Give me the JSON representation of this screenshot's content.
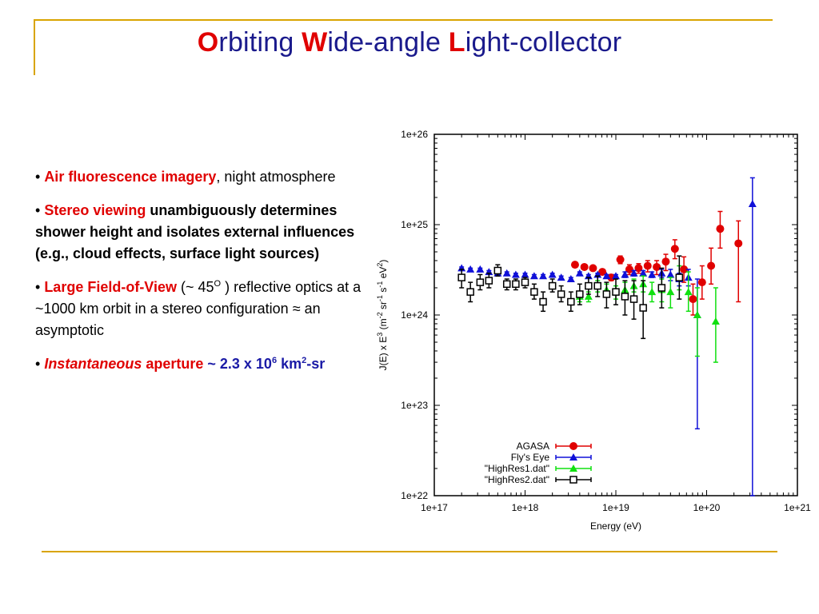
{
  "title": {
    "w1_cap": "O",
    "w1_rest": "rbiting ",
    "w2_cap": "W",
    "w2_rest": "ide-angle ",
    "w3_cap": "L",
    "w3_rest": "ight-collector"
  },
  "bullets": {
    "b1": {
      "marker": "• ",
      "emph": "Air fluorescence imagery",
      "rest": ", night atmosphere"
    },
    "b2": {
      "marker": "• ",
      "emph": "Stereo viewing",
      "rest": " unambiguously determines shower height and isolates external influences (e.g., cloud effects, surface light sources)"
    },
    "b3": {
      "marker": "• ",
      "emph": "Large Field-of-View",
      "rest1": " (~ 45",
      "sup": "O",
      "rest2": " ) reflective optics at a ~1000 km orbit in a stereo configuration ≈  an asymptotic"
    },
    "b4": {
      "marker": "• ",
      "emph": "Instantaneous",
      "rest": "  aperture",
      "val1": " ~ 2.3 x 10",
      "sup": "6",
      "val2": " km",
      "sup2": "2",
      "val3": "-sr"
    }
  },
  "chart_data": {
    "type": "scatter",
    "xlabel": "Energy (eV)",
    "ylabel": "J(E) x E^3 (m^-2 sr^-1 s^-1 eV^2)",
    "xscale": "log",
    "yscale": "log",
    "xlim": [
      1e+17,
      1e+21
    ],
    "ylim": [
      1e+22,
      1e+26
    ],
    "xticks": [
      "1e+17",
      "1e+18",
      "1e+19",
      "1e+20",
      "1e+21"
    ],
    "yticks": [
      "1e+22",
      "1e+23",
      "1e+24",
      "1e+25",
      "1e+26"
    ],
    "legend_position": "bottom-right",
    "series": [
      {
        "name": "AGASA",
        "color": "#e00000",
        "marker": "circle",
        "points": [
          [
            3.55e+18,
            3.6e+24,
            3.4e+24,
            3.8e+24
          ],
          [
            4.5e+18,
            3.4e+24,
            3.2e+24,
            3.6e+24
          ],
          [
            5.6e+18,
            3.3e+24,
            3.1e+24,
            3.5e+24
          ],
          [
            7.1e+18,
            3e+24,
            2.8e+24,
            3.2e+24
          ],
          [
            8.9e+18,
            2.6e+24,
            2.4e+24,
            2.8e+24
          ],
          [
            1.12e+19,
            4.1e+24,
            3.7e+24,
            4.5e+24
          ],
          [
            1.41e+19,
            3.2e+24,
            2.8e+24,
            3.6e+24
          ],
          [
            1.78e+19,
            3.3e+24,
            2.9e+24,
            3.7e+24
          ],
          [
            2.24e+19,
            3.5e+24,
            3e+24,
            4e+24
          ],
          [
            2.82e+19,
            3.4e+24,
            2.8e+24,
            4e+24
          ],
          [
            3.55e+19,
            3.9e+24,
            3.1e+24,
            4.7e+24
          ],
          [
            4.47e+19,
            5.4e+24,
            4.2e+24,
            6.8e+24
          ],
          [
            5.62e+19,
            3.2e+24,
            2.3e+24,
            4.4e+24
          ],
          [
            7.08e+19,
            1.5e+24,
            1e+24,
            2.2e+24
          ],
          [
            8.91e+19,
            2.3e+24,
            1.5e+24,
            3.5e+24
          ],
          [
            1.12e+20,
            3.5e+24,
            2.2e+24,
            5.5e+24
          ],
          [
            1.41e+20,
            9e+24,
            5.5e+24,
            1.4e+25
          ],
          [
            2.24e+20,
            6.2e+24,
            1.4e+24,
            1.1e+25
          ]
        ]
      },
      {
        "name": "Fly's Eye",
        "color": "#1010d8",
        "marker": "triangle",
        "points": [
          [
            2e+17,
            3.3e+24,
            3.2e+24,
            3.4e+24
          ],
          [
            2.5e+17,
            3.2e+24,
            3.1e+24,
            3.3e+24
          ],
          [
            3.2e+17,
            3.2e+24,
            3.1e+24,
            3.3e+24
          ],
          [
            4e+17,
            3e+24,
            2.9e+24,
            3.1e+24
          ],
          [
            5e+17,
            2.9e+24,
            2.8e+24,
            3e+24
          ],
          [
            6.3e+17,
            2.9e+24,
            2.8e+24,
            3e+24
          ],
          [
            7.9e+17,
            2.8e+24,
            2.7e+24,
            2.9e+24
          ],
          [
            1e+18,
            2.8e+24,
            2.7e+24,
            2.9e+24
          ],
          [
            1.26e+18,
            2.7e+24,
            2.6e+24,
            2.8e+24
          ],
          [
            1.58e+18,
            2.7e+24,
            2.6e+24,
            2.8e+24
          ],
          [
            2e+18,
            2.8e+24,
            2.7e+24,
            2.9e+24
          ],
          [
            2.5e+18,
            2.6e+24,
            2.5e+24,
            2.7e+24
          ],
          [
            3.2e+18,
            2.5e+24,
            2.4e+24,
            2.6e+24
          ],
          [
            4e+18,
            2.9e+24,
            2.8e+24,
            3e+24
          ],
          [
            5e+18,
            2.7e+24,
            2.6e+24,
            2.8e+24
          ],
          [
            6.3e+18,
            2.8e+24,
            2.7e+24,
            2.9e+24
          ],
          [
            7.9e+18,
            2.7e+24,
            2.6e+24,
            2.8e+24
          ],
          [
            1e+19,
            2.7e+24,
            2.6e+24,
            2.8e+24
          ],
          [
            1.26e+19,
            2.8e+24,
            2.6e+24,
            3e+24
          ],
          [
            1.58e+19,
            2.9e+24,
            2.7e+24,
            3.1e+24
          ],
          [
            2e+19,
            2.9e+24,
            2.7e+24,
            3.1e+24
          ],
          [
            2.5e+19,
            2.8e+24,
            2.6e+24,
            3e+24
          ],
          [
            3.2e+19,
            2.9e+24,
            2.6e+24,
            3.2e+24
          ],
          [
            4e+19,
            2.8e+24,
            2.4e+24,
            3.2e+24
          ],
          [
            5e+19,
            2.5e+24,
            2.1e+24,
            2.9e+24
          ],
          [
            6.3e+19,
            2.6e+24,
            2.1e+24,
            3.2e+24
          ],
          [
            7.9e+19,
            1e+24,
            5.5e+22,
            2.5e+24
          ],
          [
            3.2e+20,
            1.7e+25,
            1e+22,
            3.3e+25
          ]
        ]
      },
      {
        "name": "\"HighRes1.dat\"",
        "color": "#10e010",
        "marker": "triangle",
        "points": [
          [
            4e+18,
            1.6e+24,
            1.4e+24,
            1.8e+24
          ],
          [
            5e+18,
            1.6e+24,
            1.4e+24,
            1.8e+24
          ],
          [
            6.3e+18,
            2.1e+24,
            1.8e+24,
            2.4e+24
          ],
          [
            7.9e+18,
            1.9e+24,
            1.6e+24,
            2.2e+24
          ],
          [
            1e+19,
            1.8e+24,
            1.5e+24,
            2.1e+24
          ],
          [
            1.26e+19,
            1.9e+24,
            1.6e+24,
            2.3e+24
          ],
          [
            1.58e+19,
            2.1e+24,
            1.8e+24,
            2.5e+24
          ],
          [
            2e+19,
            2.2e+24,
            1.8e+24,
            2.7e+24
          ],
          [
            2.5e+19,
            1.8e+24,
            1.4e+24,
            2.3e+24
          ],
          [
            3.2e+19,
            1.9e+24,
            1.4e+24,
            2.5e+24
          ],
          [
            4e+19,
            1.8e+24,
            1.2e+24,
            2.6e+24
          ],
          [
            5e+19,
            2.6e+24,
            1.9e+24,
            3.5e+24
          ],
          [
            6.3e+19,
            1.8e+24,
            1.1e+24,
            3e+24
          ],
          [
            7.9e+19,
            1e+24,
            3.5e+23,
            2e+24
          ],
          [
            1.26e+20,
            8.5e+23,
            3e+23,
            2e+24
          ]
        ]
      },
      {
        "name": "\"HighRes2.dat\"",
        "color": "#000000",
        "marker": "square",
        "points": [
          [
            2e+17,
            2.6e+24,
            2e+24,
            3.2e+24
          ],
          [
            2.5e+17,
            1.8e+24,
            1.4e+24,
            2.3e+24
          ],
          [
            3.2e+17,
            2.3e+24,
            1.9e+24,
            2.8e+24
          ],
          [
            4e+17,
            2.4e+24,
            2e+24,
            2.9e+24
          ],
          [
            5e+17,
            3.1e+24,
            2.7e+24,
            3.6e+24
          ],
          [
            6.3e+17,
            2.2e+24,
            1.9e+24,
            2.5e+24
          ],
          [
            7.9e+17,
            2.2e+24,
            1.9e+24,
            2.5e+24
          ],
          [
            1e+18,
            2.3e+24,
            2e+24,
            2.6e+24
          ],
          [
            1.26e+18,
            1.8e+24,
            1.5e+24,
            2.2e+24
          ],
          [
            1.58e+18,
            1.4e+24,
            1.1e+24,
            1.8e+24
          ],
          [
            2e+18,
            2.1e+24,
            1.8e+24,
            2.5e+24
          ],
          [
            2.5e+18,
            1.7e+24,
            1.4e+24,
            2.1e+24
          ],
          [
            3.2e+18,
            1.4e+24,
            1.1e+24,
            1.8e+24
          ],
          [
            4e+18,
            1.7e+24,
            1.3e+24,
            2.2e+24
          ],
          [
            5e+18,
            2.1e+24,
            1.7e+24,
            2.6e+24
          ],
          [
            6.3e+18,
            2.1e+24,
            1.6e+24,
            2.7e+24
          ],
          [
            7.9e+18,
            1.7e+24,
            1.2e+24,
            2.3e+24
          ],
          [
            1e+19,
            1.8e+24,
            1.3e+24,
            2.5e+24
          ],
          [
            1.26e+19,
            1.6e+24,
            1e+24,
            2.4e+24
          ],
          [
            1.58e+19,
            1.5e+24,
            9e+23,
            2.4e+24
          ],
          [
            2e+19,
            1.2e+24,
            5.5e+23,
            2.4e+24
          ],
          [
            3.2e+19,
            2e+24,
            1.2e+24,
            3.3e+24
          ],
          [
            5e+19,
            2.6e+24,
            1.5e+24,
            4.5e+24
          ]
        ]
      }
    ]
  }
}
